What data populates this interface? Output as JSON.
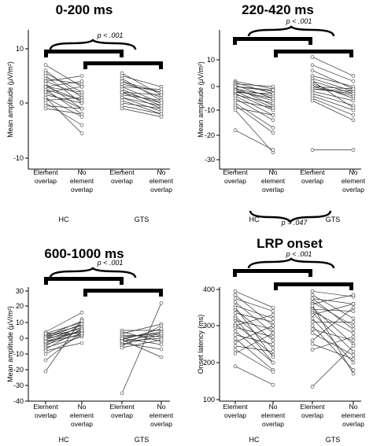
{
  "chart_data": [
    {
      "type": "line",
      "title": "0-200 ms",
      "ylabel": "Mean amplitude (μV/m²)",
      "ylim": [
        -10,
        10
      ],
      "yticks": [
        "10",
        "0",
        "-10"
      ],
      "categories": [
        "Element overlap",
        "No element overlap",
        "Element overlap",
        "No element overlap"
      ],
      "groups": [
        "HC",
        "GTS"
      ],
      "significance": "p < .001",
      "series": [
        {
          "x": [
            "Element overlap",
            "No element overlap"
          ],
          "values": [
            [
              7,
              3
            ],
            [
              6,
              1
            ],
            [
              5.5,
              2
            ],
            [
              5,
              0
            ],
            [
              4.5,
              3.5
            ],
            [
              4,
              1.5
            ],
            [
              4,
              5
            ],
            [
              3.5,
              -1
            ],
            [
              3,
              2
            ],
            [
              3,
              0.5
            ],
            [
              2.5,
              -2
            ],
            [
              2,
              -1
            ],
            [
              2,
              3
            ],
            [
              1.5,
              0
            ],
            [
              1,
              -2.5
            ],
            [
              0.5,
              1
            ],
            [
              0,
              -4
            ],
            [
              -0.5,
              -1
            ],
            [
              -1,
              -2
            ],
            [
              1,
              -5.5
            ],
            [
              2.5,
              0.5
            ],
            [
              3,
              4
            ]
          ]
        },
        {
          "x": [
            "Element overlap",
            "No element overlap"
          ],
          "values": [
            [
              5.5,
              1.5
            ],
            [
              5,
              3
            ],
            [
              4.5,
              0.5
            ],
            [
              4,
              1
            ],
            [
              3.5,
              2
            ],
            [
              3,
              0
            ],
            [
              3,
              2.5
            ],
            [
              2.5,
              -0.5
            ],
            [
              2,
              1.5
            ],
            [
              2,
              -1
            ],
            [
              1.5,
              0.5
            ],
            [
              1,
              -0.5
            ],
            [
              1,
              -1.5
            ],
            [
              0.5,
              -2
            ],
            [
              0,
              -1
            ],
            [
              -0.5,
              -2
            ],
            [
              -1,
              -2.5
            ],
            [
              2,
              0
            ],
            [
              4,
              2
            ]
          ]
        }
      ]
    },
    {
      "type": "line",
      "title": "220-420 ms",
      "ylabel": "Mean amplitude (μV/m²)",
      "ylim": [
        -30,
        15
      ],
      "yticks": [
        "10",
        "0",
        "-10",
        "-20",
        "-30"
      ],
      "categories": [
        "Element overlap",
        "No element overlap",
        "Element overlap",
        "No element overlap"
      ],
      "groups": [
        "HC",
        "GTS"
      ],
      "significance": "p < .001",
      "significance2": "p = .047",
      "series": [
        {
          "x": [
            "Element overlap",
            "No element overlap"
          ],
          "values": [
            [
              2,
              -1
            ],
            [
              1.5,
              -3
            ],
            [
              1,
              0
            ],
            [
              0.5,
              -5
            ],
            [
              0,
              -2
            ],
            [
              -0.5,
              -8
            ],
            [
              -1,
              -4
            ],
            [
              -1.5,
              -6
            ],
            [
              -2,
              -9
            ],
            [
              -2.5,
              -3
            ],
            [
              -3,
              -10
            ],
            [
              -3.5,
              -7
            ],
            [
              -4,
              -12
            ],
            [
              -5,
              -14
            ],
            [
              -6,
              -9
            ],
            [
              -7,
              -17
            ],
            [
              -8,
              -19
            ],
            [
              -9,
              -12
            ],
            [
              -10,
              -27
            ],
            [
              -18,
              -26
            ],
            [
              -2,
              -5
            ],
            [
              0,
              -1.5
            ]
          ]
        },
        {
          "x": [
            "Element overlap",
            "No element overlap"
          ],
          "values": [
            [
              11,
              4
            ],
            [
              8,
              2
            ],
            [
              6,
              -1
            ],
            [
              4,
              0
            ],
            [
              3,
              -2
            ],
            [
              2,
              -3
            ],
            [
              1,
              -5
            ],
            [
              0,
              -4
            ],
            [
              -1,
              -2
            ],
            [
              -2,
              -6
            ],
            [
              -3,
              -8
            ],
            [
              -4,
              -10
            ],
            [
              -5,
              -12
            ],
            [
              -6,
              -14
            ],
            [
              -1,
              -3
            ],
            [
              0,
              -1
            ],
            [
              2,
              -9
            ],
            [
              -26,
              -26
            ]
          ]
        }
      ]
    },
    {
      "type": "line",
      "title": "600-1000 ms",
      "ylabel": "Mean amplitude (μV/m²)",
      "ylim": [
        -40,
        30
      ],
      "yticks": [
        "30",
        "20",
        "10",
        "0",
        "-10",
        "-20",
        "-30",
        "-40"
      ],
      "categories": [
        "Element overlap",
        "No element overlap",
        "Element overlap",
        "No element overlap"
      ],
      "groups": [
        "HC",
        "GTS"
      ],
      "significance": "p < .001",
      "series": [
        {
          "x": [
            "Element overlap",
            "No element overlap"
          ],
          "values": [
            [
              4,
              16
            ],
            [
              3,
              10
            ],
            [
              2,
              8
            ],
            [
              1,
              6
            ],
            [
              0,
              4
            ],
            [
              -1,
              7
            ],
            [
              -2,
              2
            ],
            [
              -3,
              5
            ],
            [
              -4,
              3
            ],
            [
              -5,
              9
            ],
            [
              -6,
              1
            ],
            [
              -7,
              6
            ],
            [
              -8,
              -3
            ],
            [
              -10,
              2
            ],
            [
              -14,
              4
            ],
            [
              -21,
              12
            ],
            [
              1,
              11
            ],
            [
              -2,
              5
            ],
            [
              3,
              3
            ],
            [
              0,
              9
            ]
          ]
        },
        {
          "x": [
            "Element overlap",
            "No element overlap"
          ],
          "values": [
            [
              5,
              5
            ],
            [
              4,
              -2
            ],
            [
              3,
              9
            ],
            [
              2,
              1
            ],
            [
              1,
              3
            ],
            [
              0,
              -4
            ],
            [
              -1,
              6
            ],
            [
              -2,
              0
            ],
            [
              -3,
              -7
            ],
            [
              -4,
              2
            ],
            [
              -5,
              8
            ],
            [
              -6,
              -1
            ],
            [
              -1,
              -12
            ],
            [
              -35,
              22
            ],
            [
              0,
              4
            ],
            [
              -2,
              3
            ]
          ]
        }
      ]
    },
    {
      "type": "line",
      "title": "LRP onset",
      "ylabel": "Onset latency (ms)",
      "ylim": [
        100,
        400
      ],
      "yticks": [
        "400",
        "300",
        "200",
        "100"
      ],
      "categories": [
        "Element overlap",
        "No element overlap",
        "Element overlap",
        "No element overlap"
      ],
      "groups": [
        "HC",
        "GTS"
      ],
      "significance": "p < .001",
      "series": [
        {
          "x": [
            "Element overlap",
            "No element overlap"
          ],
          "values": [
            [
              395,
              350
            ],
            [
              385,
              300
            ],
            [
              375,
              340
            ],
            [
              365,
              280
            ],
            [
              355,
              320
            ],
            [
              345,
              260
            ],
            [
              335,
              310
            ],
            [
              325,
              240
            ],
            [
              315,
              290
            ],
            [
              305,
              220
            ],
            [
              295,
              270
            ],
            [
              285,
              200
            ],
            [
              275,
              250
            ],
            [
              265,
              180
            ],
            [
              255,
              300
            ],
            [
              245,
              230
            ],
            [
              235,
              175
            ],
            [
              225,
              280
            ],
            [
              190,
              140
            ],
            [
              350,
              215
            ],
            [
              300,
              330
            ],
            [
              320,
              200
            ]
          ]
        },
        {
          "x": [
            "Element overlap",
            "No element overlap"
          ],
          "values": [
            [
              395,
              380
            ],
            [
              385,
              320
            ],
            [
              375,
              360
            ],
            [
              365,
              300
            ],
            [
              360,
              385
            ],
            [
              350,
              250
            ],
            [
              345,
              340
            ],
            [
              340,
              280
            ],
            [
              335,
              230
            ],
            [
              330,
              360
            ],
            [
              320,
              200
            ],
            [
              310,
              310
            ],
            [
              300,
              180
            ],
            [
              290,
              260
            ],
            [
              280,
              220
            ],
            [
              260,
              350
            ],
            [
              250,
              210
            ],
            [
              235,
              270
            ],
            [
              135,
              245
            ],
            [
              375,
              290
            ],
            [
              355,
              170
            ]
          ]
        }
      ]
    }
  ]
}
